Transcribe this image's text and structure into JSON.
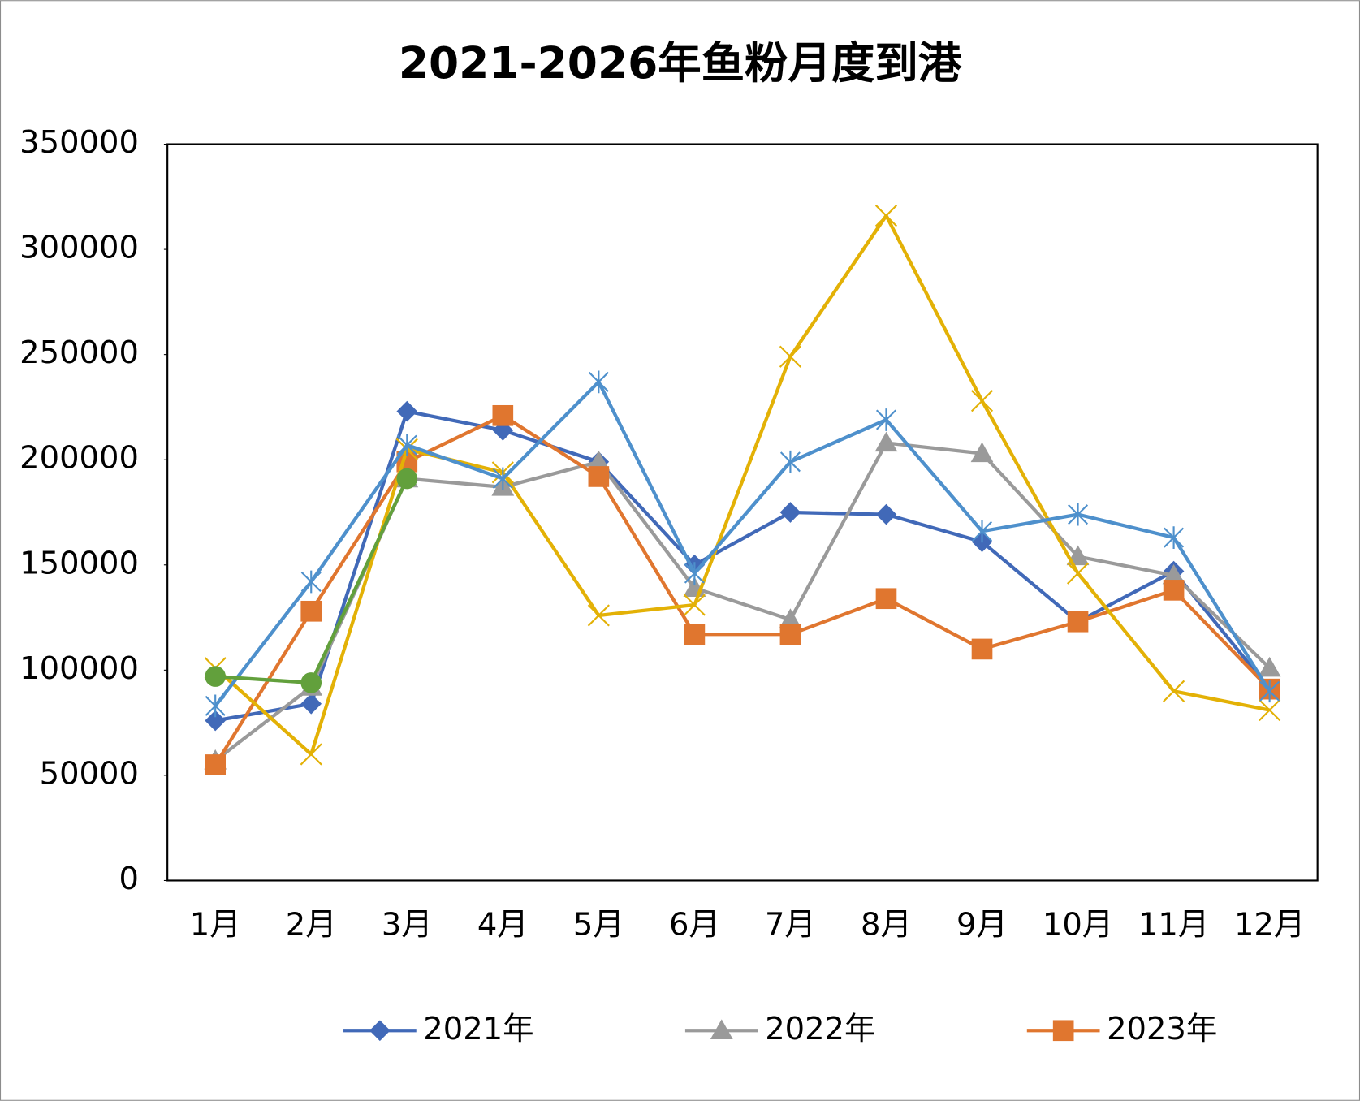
{
  "chart_data": {
    "type": "line",
    "title": "2021-2026年鱼粉月度到港",
    "categories": [
      "1月",
      "2月",
      "3月",
      "4月",
      "5月",
      "6月",
      "7月",
      "8月",
      "9月",
      "10月",
      "11月",
      "12月"
    ],
    "ylim": [
      0,
      350000
    ],
    "yticks": [
      0,
      50000,
      100000,
      150000,
      200000,
      250000,
      300000,
      350000
    ],
    "grid": false,
    "legend": "bottom",
    "series": [
      {
        "name": "2021年",
        "color": "#4169b8",
        "marker": "diamond",
        "values": [
          76000,
          84000,
          223000,
          214000,
          199000,
          150000,
          175000,
          174000,
          161000,
          123000,
          147000,
          91000
        ]
      },
      {
        "name": "2022年",
        "color": "#9a9a9a",
        "marker": "triangle",
        "values": [
          57000,
          92000,
          191000,
          187000,
          199000,
          139000,
          124000,
          208000,
          203000,
          154000,
          145000,
          101000
        ]
      },
      {
        "name": "2023年",
        "color": "#e0762f",
        "marker": "square",
        "values": [
          55000,
          128000,
          199000,
          221000,
          192000,
          117000,
          117000,
          134000,
          110000,
          123000,
          138000,
          91000
        ]
      },
      {
        "color": "#e3b106",
        "marker": "x",
        "values": [
          101000,
          60000,
          205000,
          194000,
          126000,
          131000,
          249000,
          316000,
          228000,
          146000,
          90000,
          81000
        ]
      },
      {
        "color": "#4e90cc",
        "marker": "asterisk",
        "values": [
          83000,
          142000,
          207000,
          191000,
          237000,
          146000,
          199000,
          219000,
          166000,
          174000,
          163000,
          90000
        ]
      },
      {
        "color": "#62a03c",
        "marker": "circle",
        "values": [
          97000,
          94000,
          191000,
          null,
          null,
          null,
          null,
          null,
          null,
          null,
          null,
          null
        ]
      }
    ]
  }
}
